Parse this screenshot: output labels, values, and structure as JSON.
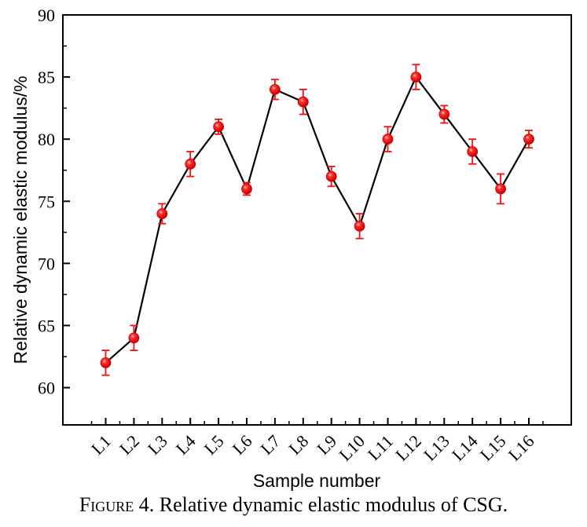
{
  "caption": {
    "label": "Figure",
    "number": "4.",
    "text": "Relative dynamic elastic modulus of CSG."
  },
  "chart_data": {
    "type": "line",
    "xlabel": "Sample number",
    "ylabel": "Relative dynamic elastic modulus/%",
    "ylim": [
      57,
      90
    ],
    "yticks": [
      60,
      65,
      70,
      75,
      80,
      85,
      90
    ],
    "grid": false,
    "categories": [
      "L1",
      "L2",
      "L3",
      "L4",
      "L5",
      "L6",
      "L7",
      "L8",
      "L9",
      "L10",
      "L11",
      "L12",
      "L13",
      "L14",
      "L15",
      "L16"
    ],
    "series": [
      {
        "values": [
          62,
          64,
          74,
          78,
          81,
          76,
          84,
          83,
          77,
          73,
          80,
          85,
          82,
          79,
          76,
          80
        ],
        "error_upper": [
          1.0,
          1.0,
          0.8,
          1.0,
          0.6,
          0.5,
          0.8,
          1.0,
          0.8,
          1.0,
          1.0,
          1.0,
          0.7,
          1.0,
          1.2,
          0.7
        ],
        "error_lower": [
          1.0,
          1.0,
          0.8,
          1.0,
          0.6,
          0.5,
          0.8,
          1.0,
          0.8,
          1.0,
          1.0,
          1.0,
          0.7,
          1.0,
          1.2,
          0.7
        ],
        "line_color": "#000000",
        "marker_color": "#ff0000",
        "error_color": "#ee1111"
      }
    ]
  }
}
